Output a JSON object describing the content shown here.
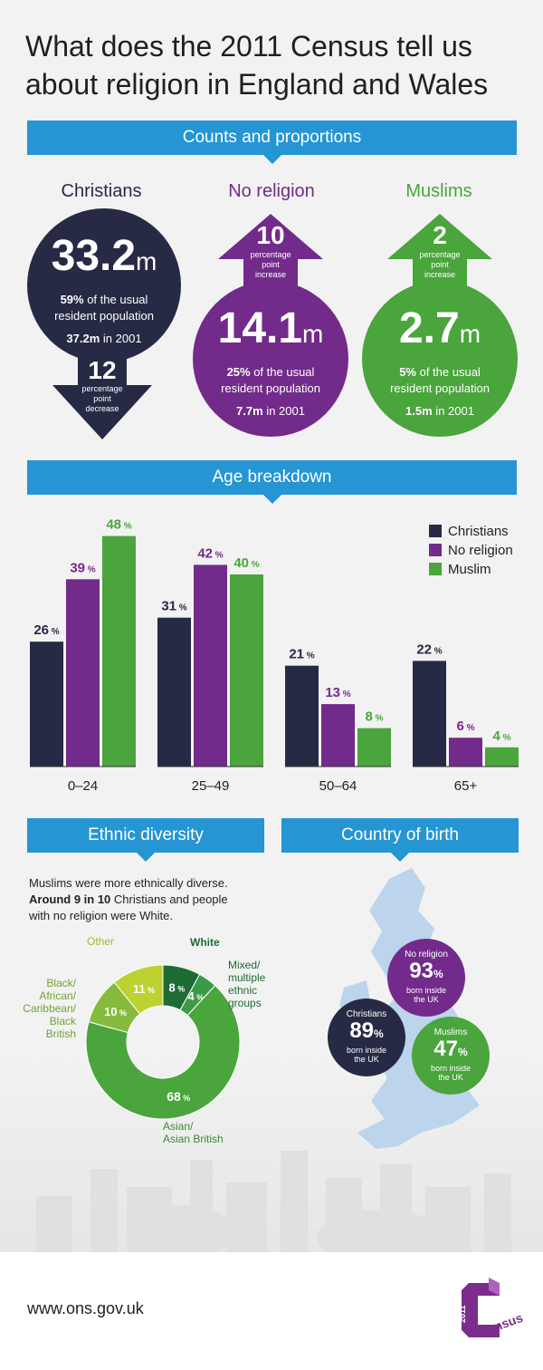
{
  "header": {
    "title_line1": "What does the 2011 Census tell us",
    "title_line2": "about religion in England and Wales"
  },
  "sections": {
    "counts": "Counts and proportions",
    "age": "Age breakdown",
    "ethnic": "Ethnic diversity",
    "birth": "Country of birth"
  },
  "counts": {
    "christians": {
      "label": "Christians",
      "value": "33.2",
      "unit": "m",
      "share_bold": "59%",
      "share_rest": " of the usual",
      "share_line2": "resident population",
      "prev_bold": "37.2m",
      "prev_rest": " in 2001",
      "change": "12",
      "change_l1": "percentage",
      "change_l2": "point",
      "change_l3": "decrease"
    },
    "no_religion": {
      "label": "No religion",
      "value": "14.1",
      "unit": "m",
      "share_bold": "25%",
      "share_rest": " of the usual",
      "share_line2": "resident population",
      "prev_bold": "7.7m",
      "prev_rest": " in 2001",
      "change": "10",
      "change_l1": "percentage",
      "change_l2": "point",
      "change_l3": "increase"
    },
    "muslims": {
      "label": "Muslims",
      "value": "2.7",
      "unit": "m",
      "share_bold": "5%",
      "share_rest": " of the usual",
      "share_line2": "resident population",
      "prev_bold": "1.5m",
      "prev_rest": " in 2001",
      "change": "2",
      "change_l1": "percentage",
      "change_l2": "point",
      "change_l3": "increase"
    }
  },
  "colors": {
    "christians": "#262a44",
    "no_religion": "#722b8a",
    "muslim": "#4aa53c",
    "banner": "#2595d3"
  },
  "chart_data": [
    {
      "type": "bar",
      "title": "Age breakdown",
      "categories": [
        "0–24",
        "25–49",
        "50–64",
        "65+"
      ],
      "unit": "%",
      "ylim": [
        0,
        50
      ],
      "legend_position": "top-right",
      "series": [
        {
          "name": "Christians",
          "values": [
            26,
            31,
            21,
            22
          ]
        },
        {
          "name": "No religion",
          "values": [
            39,
            42,
            13,
            6
          ]
        },
        {
          "name": "Muslim",
          "values": [
            48,
            40,
            8,
            4
          ]
        }
      ]
    },
    {
      "type": "pie",
      "title": "Ethnic diversity",
      "unit": "%",
      "slices": [
        {
          "label": "White",
          "value": 8,
          "color": "#1f6b34"
        },
        {
          "label": "Mixed/ multiple ethnic groups",
          "value": 4,
          "color": "#3b9a46"
        },
        {
          "label": "Asian/ Asian British",
          "value": 68,
          "color": "#4aa53c"
        },
        {
          "label": "Black/ African/ Caribbean/ Black British",
          "value": 10,
          "color": "#86ba3c"
        },
        {
          "label": "Other",
          "value": 11,
          "color": "#bdd130"
        }
      ]
    }
  ],
  "ethnic": {
    "text1": "Muslims were more ethnically diverse.",
    "text2_bold": "Around 9 in 10",
    "text2_rest": " Christians and people",
    "text3": "with no religion were White.",
    "lbl_white": "White",
    "lbl_mixed_1": "Mixed/",
    "lbl_mixed_2": "multiple",
    "lbl_mixed_3": "ethnic",
    "lbl_mixed_4": "groups",
    "lbl_asian_1": "Asian/",
    "lbl_asian_2": "Asian British",
    "lbl_black_1": "Black/",
    "lbl_black_2": "African/",
    "lbl_black_3": "Caribbean/",
    "lbl_black_4": "Black",
    "lbl_black_5": "British",
    "lbl_other": "Other"
  },
  "birth": {
    "no_religion": {
      "label": "No religion",
      "value": "93",
      "unit": "%",
      "l1": "born inside",
      "l2": "the UK"
    },
    "christians": {
      "label": "Christians",
      "value": "89",
      "unit": "%",
      "l1": "born inside",
      "l2": "the UK"
    },
    "muslims": {
      "label": "Muslims",
      "value": "47",
      "unit": "%",
      "l1": "born inside",
      "l2": "the UK"
    }
  },
  "footer": {
    "url": "www.ons.gov.uk",
    "logo_year": "2011",
    "logo_word": "Census"
  }
}
